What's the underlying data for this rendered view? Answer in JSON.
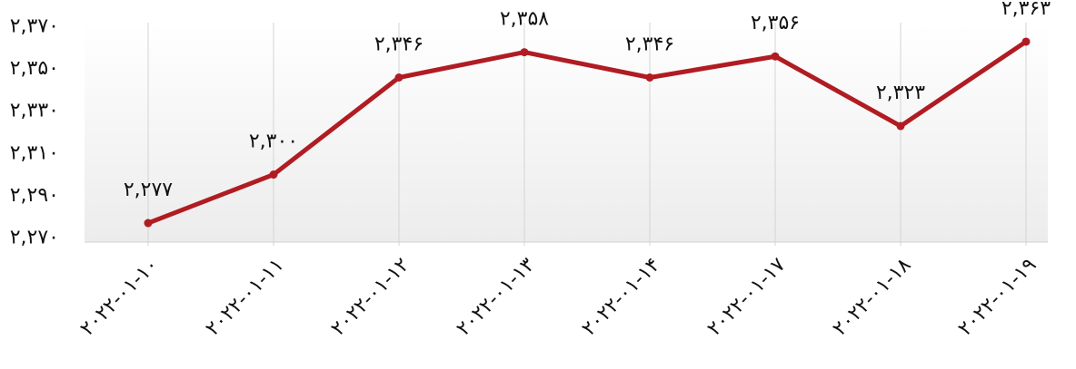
{
  "chart_data": {
    "type": "line",
    "categories": [
      "۲۰۲۲-۰۱-۱۰",
      "۲۰۲۲-۰۱-۱۱",
      "۲۰۲۲-۰۱-۱۲",
      "۲۰۲۲-۰۱-۱۳",
      "۲۰۲۲-۰۱-۱۴",
      "۲۰۲۲-۰۱-۱۷",
      "۲۰۲۲-۰۱-۱۸",
      "۲۰۲۲-۰۱-۱۹"
    ],
    "series": [
      {
        "color": "#b01c22",
        "values": [
          2277,
          2300,
          2346,
          2358,
          2346,
          2356,
          2323,
          2363
        ],
        "value_labels": [
          "۲,۲۷۷",
          "۲,۳۰۰",
          "۲,۳۴۶",
          "۲,۳۵۸",
          "۲,۳۴۶",
          "۲,۳۵۶",
          "۲,۳۲۳",
          "۲,۳۶۳"
        ]
      }
    ],
    "ylim": [
      2268,
      2372
    ],
    "yticks": [
      {
        "value": 2270,
        "label": "۲,۲۷۰"
      },
      {
        "value": 2290,
        "label": "۲,۲۹۰"
      },
      {
        "value": 2310,
        "label": "۲,۳۱۰"
      },
      {
        "value": 2330,
        "label": "۲,۳۳۰"
      },
      {
        "value": 2350,
        "label": "۲,۳۵۰"
      },
      {
        "value": 2370,
        "label": "۲,۳۷۰"
      }
    ],
    "grid": true
  }
}
